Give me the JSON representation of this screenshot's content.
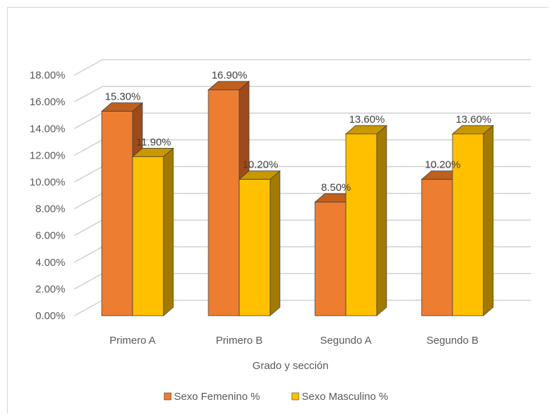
{
  "chart_data": {
    "type": "bar",
    "title": "",
    "xlabel": "Grado y sección",
    "ylabel": "",
    "ylim": [
      0,
      18
    ],
    "yticks": [
      "0.00%",
      "2.00%",
      "4.00%",
      "6.00%",
      "8.00%",
      "10.00%",
      "12.00%",
      "14.00%",
      "16.00%",
      "18.00%"
    ],
    "categories": [
      "Primero A",
      "Primero B",
      "Segundo A",
      "Segundo B"
    ],
    "series": [
      {
        "name": "Sexo Femenino %",
        "values": [
          15.3,
          16.9,
          8.5,
          10.2
        ],
        "labels": [
          "15.30%",
          "16.90%",
          "8.50%",
          "10.20%"
        ],
        "color": "#ED7D31",
        "side_color": "#9E4A1B",
        "top_color": "#C0601E"
      },
      {
        "name": "Sexo Masculino %",
        "values": [
          11.9,
          10.2,
          13.6,
          13.6
        ],
        "labels": [
          "11.90%",
          "10.20%",
          "13.60%",
          "13.60%"
        ],
        "color": "#FFC000",
        "side_color": "#A37A00",
        "top_color": "#C99700"
      }
    ],
    "grid": true,
    "legend_position": "bottom",
    "style": "3d-clustered-column"
  }
}
